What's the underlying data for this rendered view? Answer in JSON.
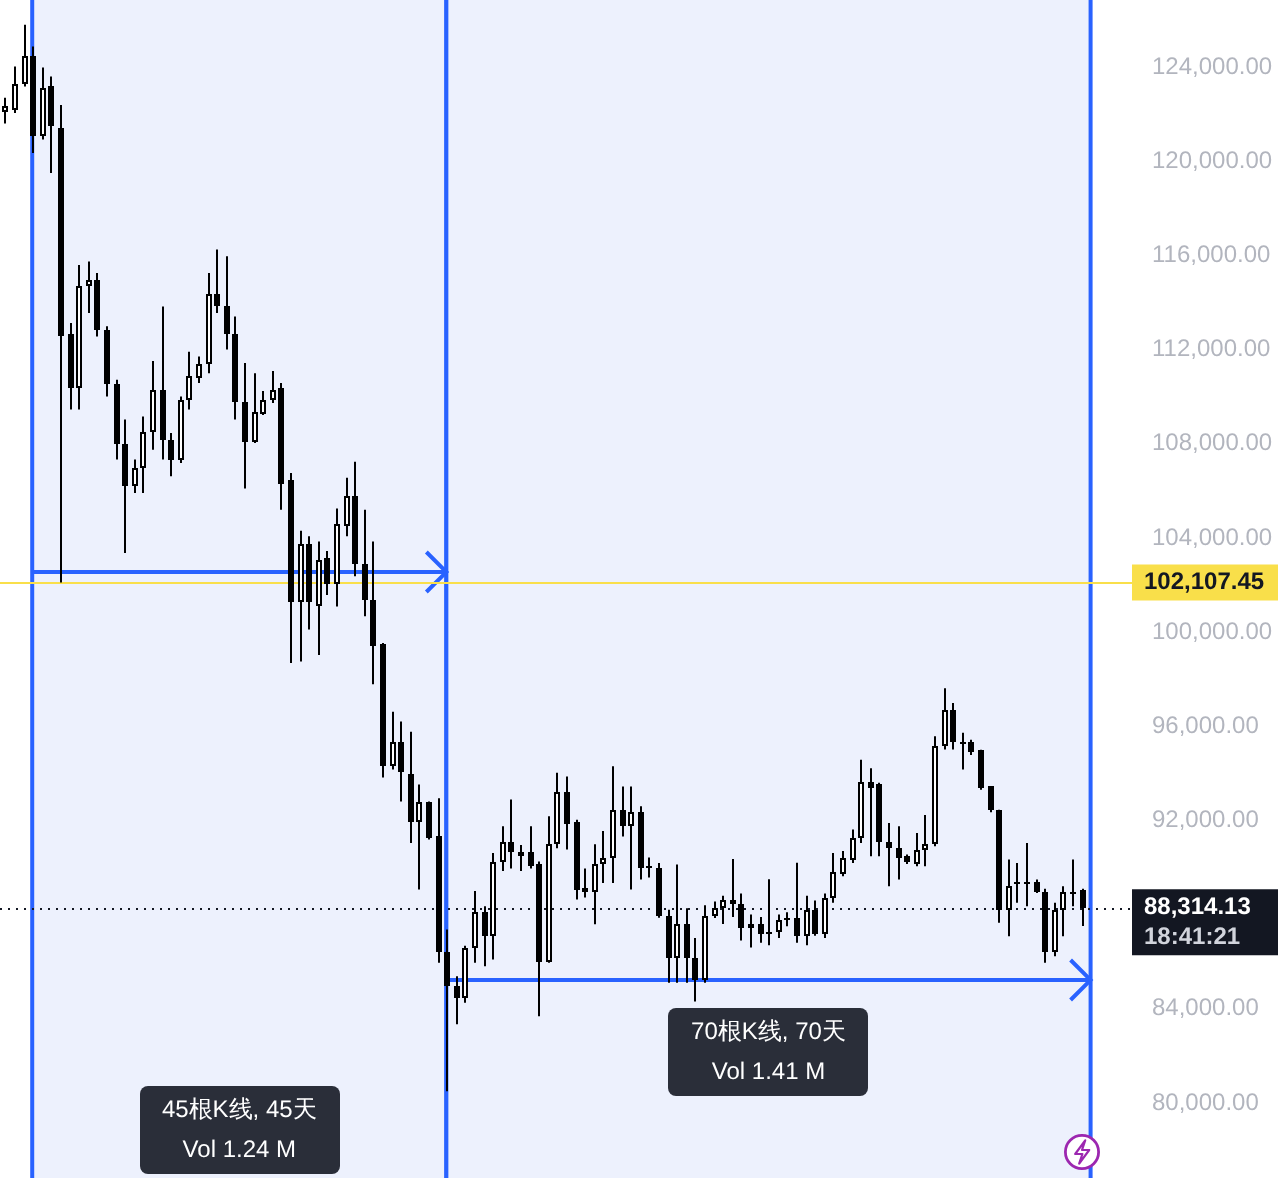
{
  "chart_data": {
    "type": "candlestick",
    "categories": [
      null,
      null,
      null,
      null,
      null,
      null,
      null,
      null,
      null,
      null,
      null,
      null,
      null,
      null,
      null,
      null,
      null,
      null,
      null,
      null,
      null,
      null,
      null,
      null,
      null,
      null,
      null,
      null,
      null,
      null,
      null,
      null,
      null,
      null,
      null,
      null,
      null,
      null,
      null,
      null,
      null,
      null,
      null,
      null,
      null,
      null,
      null,
      null,
      null,
      null,
      null,
      null,
      null,
      null,
      null,
      null,
      null,
      null,
      null,
      null,
      null,
      null,
      null,
      null,
      null,
      null,
      null,
      null,
      null,
      null,
      null,
      null,
      null,
      null,
      null,
      null,
      null,
      null,
      null,
      null,
      null,
      null,
      null,
      null,
      null,
      null,
      null,
      null,
      null,
      null,
      null,
      null,
      null,
      null,
      null,
      null,
      null,
      null,
      null,
      null,
      null,
      null,
      null,
      null,
      null,
      null,
      null,
      null,
      null,
      null,
      null,
      null,
      null,
      null,
      null,
      null,
      null,
      null,
      null,
      null,
      null,
      null,
      null
    ],
    "ohlc": [
      [
        122050,
        122700,
        121600,
        122330
      ],
      [
        122190,
        124030,
        122050,
        123320
      ],
      [
        123320,
        125800,
        123180,
        124510
      ],
      [
        124510,
        124880,
        120350,
        121050
      ],
      [
        121050,
        123980,
        120920,
        123130
      ],
      [
        123180,
        123600,
        119500,
        121480
      ],
      [
        121430,
        122390,
        102110,
        112560
      ],
      [
        112620,
        113130,
        109450,
        110350
      ],
      [
        110350,
        115590,
        109450,
        114740
      ],
      [
        114680,
        115740,
        113550,
        114970
      ],
      [
        114970,
        115250,
        112560,
        112850
      ],
      [
        112850,
        112990,
        110010,
        110520
      ],
      [
        110580,
        110720,
        107330,
        108030
      ],
      [
        108030,
        109030,
        103360,
        106190
      ],
      [
        106190,
        107330,
        105910,
        106990
      ],
      [
        106990,
        109160,
        105910,
        108460
      ],
      [
        108460,
        111510,
        107750,
        110300
      ],
      [
        110300,
        113830,
        107330,
        108120
      ],
      [
        108120,
        108460,
        106620,
        107330
      ],
      [
        107330,
        110010,
        107180,
        109870
      ],
      [
        109870,
        111910,
        109450,
        110860
      ],
      [
        110780,
        111710,
        110580,
        111430
      ],
      [
        111370,
        115250,
        111000,
        114400
      ],
      [
        114400,
        116250,
        113550,
        113830
      ],
      [
        113890,
        115960,
        112000,
        112640
      ],
      [
        112640,
        113410,
        109030,
        109790
      ],
      [
        109790,
        111430,
        106100,
        108090
      ],
      [
        108090,
        111000,
        108030,
        109390
      ],
      [
        109300,
        110240,
        109220,
        109870
      ],
      [
        109870,
        111090,
        109730,
        110300
      ],
      [
        110350,
        110580,
        105200,
        106330
      ],
      [
        106420,
        106760,
        98690,
        101240
      ],
      [
        101240,
        104300,
        98750,
        103730
      ],
      [
        103730,
        104070,
        100110,
        101240
      ],
      [
        101090,
        103850,
        99030,
        103080
      ],
      [
        103130,
        103440,
        101580,
        102030
      ],
      [
        102030,
        105250,
        101090,
        104550
      ],
      [
        104490,
        106560,
        104070,
        105820
      ],
      [
        105820,
        107240,
        102370,
        102880
      ],
      [
        102850,
        105200,
        100670,
        101380
      ],
      [
        101380,
        103850,
        97780,
        99390
      ],
      [
        99480,
        99540,
        93820,
        94300
      ],
      [
        94300,
        96620,
        94160,
        95350
      ],
      [
        95350,
        96200,
        92800,
        94020
      ],
      [
        93960,
        95770,
        91040,
        91950
      ],
      [
        91950,
        93530,
        89060,
        92740
      ],
      [
        92740,
        92800,
        91190,
        91270
      ],
      [
        91320,
        92940,
        85950,
        86370
      ],
      [
        86370,
        87370,
        80500,
        84950
      ],
      [
        84950,
        85380,
        83340,
        84480
      ],
      [
        84480,
        86680,
        84250,
        86590
      ],
      [
        86590,
        89000,
        85950,
        88070
      ],
      [
        88070,
        88350,
        85800,
        87080
      ],
      [
        87080,
        90620,
        86090,
        90250
      ],
      [
        90250,
        91750,
        89850,
        91100
      ],
      [
        91100,
        92890,
        89960,
        90680
      ],
      [
        90700,
        90960,
        89850,
        90530
      ],
      [
        90620,
        91750,
        89960,
        90050
      ],
      [
        90130,
        90250,
        83680,
        86010
      ],
      [
        86010,
        92180,
        85950,
        91040
      ],
      [
        91040,
        94020,
        90820,
        93170
      ],
      [
        93170,
        93870,
        90760,
        91830
      ],
      [
        91890,
        92030,
        88640,
        89060
      ],
      [
        89120,
        89960,
        88730,
        88920
      ],
      [
        89000,
        90990,
        87590,
        90190
      ],
      [
        90130,
        91550,
        89340,
        90420
      ],
      [
        90420,
        94300,
        89340,
        92460
      ],
      [
        92460,
        93440,
        91320,
        91750
      ],
      [
        91750,
        93440,
        89060,
        92320
      ],
      [
        92320,
        92600,
        89490,
        89960
      ],
      [
        90050,
        90420,
        89580,
        89960
      ],
      [
        89960,
        90190,
        87870,
        87980
      ],
      [
        87980,
        88210,
        85100,
        86170
      ],
      [
        86170,
        90130,
        85100,
        87590
      ],
      [
        87590,
        88270,
        85100,
        86170
      ],
      [
        86170,
        87000,
        84310,
        85240
      ],
      [
        85240,
        88400,
        85100,
        87930
      ],
      [
        87930,
        88560,
        87850,
        88300
      ],
      [
        88300,
        88800,
        87600,
        88620
      ],
      [
        88620,
        90360,
        87900,
        88480
      ],
      [
        88480,
        88900,
        86900,
        87400
      ],
      [
        87400,
        88000,
        86600,
        87600
      ],
      [
        87600,
        87900,
        86800,
        87200
      ],
      [
        87200,
        89500,
        86700,
        87300
      ],
      [
        87300,
        88000,
        87000,
        87800
      ],
      [
        87800,
        88100,
        87500,
        87850
      ],
      [
        87850,
        90200,
        86800,
        87100
      ],
      [
        87100,
        88800,
        86700,
        88200
      ],
      [
        88200,
        88600,
        87100,
        87200
      ],
      [
        87200,
        88900,
        87000,
        88700
      ],
      [
        88700,
        90620,
        88500,
        89770
      ],
      [
        89690,
        90700,
        89630,
        90390
      ],
      [
        90340,
        91610,
        90190,
        91270
      ],
      [
        91270,
        94580,
        91040,
        93650
      ],
      [
        93590,
        94220,
        90480,
        93370
      ],
      [
        93510,
        93600,
        90480,
        91100
      ],
      [
        91100,
        91890,
        89200,
        90820
      ],
      [
        90870,
        91750,
        89490,
        90390
      ],
      [
        90480,
        90550,
        90150,
        90250
      ],
      [
        90190,
        91470,
        90050,
        90760
      ],
      [
        90760,
        92230,
        90050,
        91040
      ],
      [
        90990,
        95570,
        90900,
        95150
      ],
      [
        95150,
        97610,
        95010,
        96710
      ],
      [
        96710,
        96990,
        95010,
        95290
      ],
      [
        95350,
        95720,
        94160,
        95300
      ],
      [
        95290,
        95430,
        94780,
        94870
      ],
      [
        94950,
        95000,
        93300,
        93370
      ],
      [
        93420,
        93450,
        92350,
        92400
      ],
      [
        92400,
        92450,
        87650,
        88210
      ],
      [
        88210,
        90340,
        87080,
        89200
      ],
      [
        89300,
        90190,
        88500,
        89360
      ],
      [
        89360,
        91040,
        88350,
        89300
      ],
      [
        89350,
        89490,
        88920,
        88980
      ],
      [
        89000,
        89100,
        85950,
        86370
      ],
      [
        86370,
        88500,
        86230,
        88160
      ],
      [
        88160,
        89200,
        87080,
        88980
      ],
      [
        88980,
        90340,
        88350,
        89000
      ],
      [
        89060,
        89100,
        87510,
        88314.13
      ],
      null,
      null,
      null,
      null,
      null
    ],
    "color": "#000000",
    "ylim": [
      76810,
      126850
    ],
    "yticks": [
      {
        "value": 80000,
        "label": "80,000.00"
      },
      {
        "value": 84000,
        "label": "84,000.00"
      },
      {
        "value": 92000,
        "label": "92,000.00"
      },
      {
        "value": 96000,
        "label": "96,000.00"
      },
      {
        "value": 100000,
        "label": "100,000.00"
      },
      {
        "value": 104000,
        "label": "104,000.00"
      },
      {
        "value": 108000,
        "label": "108,000.00"
      },
      {
        "value": 112000,
        "label": "112,000.00"
      },
      {
        "value": 116000,
        "label": "116,000.00"
      },
      {
        "value": 120000,
        "label": "120,000.00"
      },
      {
        "value": 124000,
        "label": "124,000.00"
      }
    ],
    "tick_labels": "y",
    "ref_lines": [
      {
        "axis": "y",
        "value": 102107.45,
        "label": "102,107.45",
        "color": "#f9df4a"
      },
      {
        "axis": "y",
        "value": 88314.13,
        "label": "88,314.13",
        "color": "#131722",
        "line_style": "dotted"
      }
    ],
    "annotations": [
      "45根K线, 45天",
      "Vol 1.24 M",
      "70根K线, 70天",
      "Vol 1.41 M",
      "18:41:21"
    ]
  }
}
